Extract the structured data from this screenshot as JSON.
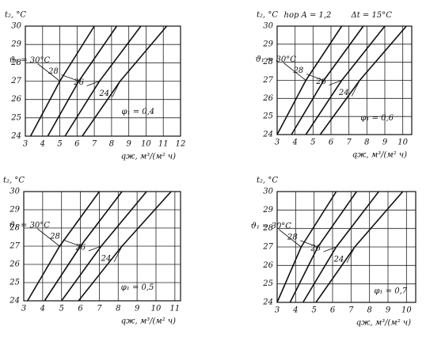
{
  "chart_data": [
    {
      "type": "line",
      "y_label": "t₂, °C",
      "x_label": "qж, м³/(м² ч)",
      "xlim": [
        3,
        12
      ],
      "xticks": [
        3,
        4,
        5,
        6,
        7,
        8,
        9,
        10,
        11,
        12
      ],
      "ylim": [
        24,
        30
      ],
      "yticks": [
        24,
        25,
        26,
        27,
        28,
        29,
        30
      ],
      "grid": true,
      "annotations": [
        "φ₁ = 0,4"
      ],
      "series": [
        {
          "name": "ϑ₁ = 30°C",
          "color": "#111",
          "x": [
            3.3,
            5,
            7
          ],
          "values": [
            24,
            27,
            30
          ]
        },
        {
          "name": "28",
          "color": "#111",
          "x": [
            4.3,
            6.1,
            8.3
          ],
          "values": [
            24,
            27,
            30
          ]
        },
        {
          "name": "26",
          "color": "#111",
          "x": [
            5.3,
            7.3,
            9.7
          ],
          "values": [
            24,
            27,
            30
          ]
        },
        {
          "name": "24",
          "color": "#111",
          "x": [
            6.3,
            8.5,
            11.2
          ],
          "values": [
            24,
            27,
            30
          ]
        }
      ]
    },
    {
      "type": "line",
      "y_label": "t₂, °C",
      "x_label": "qж, м³/(м² ч)",
      "xlim": [
        3,
        10.5
      ],
      "xticks": [
        3,
        4,
        5,
        6,
        7,
        8,
        9,
        10
      ],
      "ylim": [
        24,
        30
      ],
      "yticks": [
        24,
        25,
        26,
        27,
        28,
        29,
        30
      ],
      "grid": true,
      "annotations": [
        "hор A = 1,2",
        "Δt = 15°C",
        "φ₁ = 0,6"
      ],
      "series": [
        {
          "name": "ϑ₁ = 30°C",
          "color": "#111",
          "x": [
            3,
            4.6,
            6.6
          ],
          "values": [
            24,
            27,
            30
          ]
        },
        {
          "name": "28",
          "color": "#111",
          "x": [
            3.8,
            5.6,
            7.8
          ],
          "values": [
            24,
            27,
            30
          ]
        },
        {
          "name": "26",
          "color": "#111",
          "x": [
            4.6,
            6.6,
            9
          ],
          "values": [
            24,
            27,
            30
          ]
        },
        {
          "name": "24",
          "color": "#111",
          "x": [
            5.4,
            7.6,
            10.2
          ],
          "values": [
            24,
            27,
            30
          ]
        }
      ]
    },
    {
      "type": "line",
      "y_label": "t₂, °C",
      "x_label": "qж, м³/(м² ч)",
      "xlim": [
        3,
        11.3
      ],
      "xticks": [
        3,
        4,
        5,
        6,
        7,
        8,
        9,
        10,
        11
      ],
      "ylim": [
        24,
        30
      ],
      "yticks": [
        24,
        25,
        26,
        27,
        28,
        29,
        30
      ],
      "grid": true,
      "annotations": [
        "φ₁ = 0,5"
      ],
      "series": [
        {
          "name": "ϑ₁ = 30°C",
          "color": "#111",
          "x": [
            3.2,
            4.9,
            7
          ],
          "values": [
            24,
            27,
            30
          ]
        },
        {
          "name": "28",
          "color": "#111",
          "x": [
            4.1,
            6,
            8.2
          ],
          "values": [
            24,
            27,
            30
          ]
        },
        {
          "name": "26",
          "color": "#111",
          "x": [
            5,
            7.1,
            9.5
          ],
          "values": [
            24,
            27,
            30
          ]
        },
        {
          "name": "24",
          "color": "#111",
          "x": [
            5.9,
            8.2,
            10.8
          ],
          "values": [
            24,
            27,
            30
          ]
        }
      ]
    },
    {
      "type": "line",
      "y_label": "t₂, °C",
      "x_label": "qж, м³/(м² ч)",
      "xlim": [
        3,
        10.5
      ],
      "xticks": [
        3,
        4,
        5,
        6,
        7,
        8,
        9,
        10
      ],
      "ylim": [
        24,
        30
      ],
      "yticks": [
        24,
        25,
        26,
        27,
        28,
        29,
        30
      ],
      "grid": true,
      "annotations": [
        "φ₁ = 0,7"
      ],
      "series": [
        {
          "name": "ϑ₁ = 30°C",
          "color": "#111",
          "x": [
            3,
            4.3,
            6.2
          ],
          "values": [
            24,
            27,
            30
          ]
        },
        {
          "name": "28",
          "color": "#111",
          "x": [
            3.7,
            5.2,
            7.3
          ],
          "values": [
            24,
            27,
            30
          ]
        },
        {
          "name": "26",
          "color": "#111",
          "x": [
            4.4,
            6.2,
            8.5
          ],
          "values": [
            24,
            27,
            30
          ]
        },
        {
          "name": "24",
          "color": "#111",
          "x": [
            5.1,
            7.2,
            9.8
          ],
          "values": [
            24,
            27,
            30
          ]
        }
      ]
    }
  ]
}
